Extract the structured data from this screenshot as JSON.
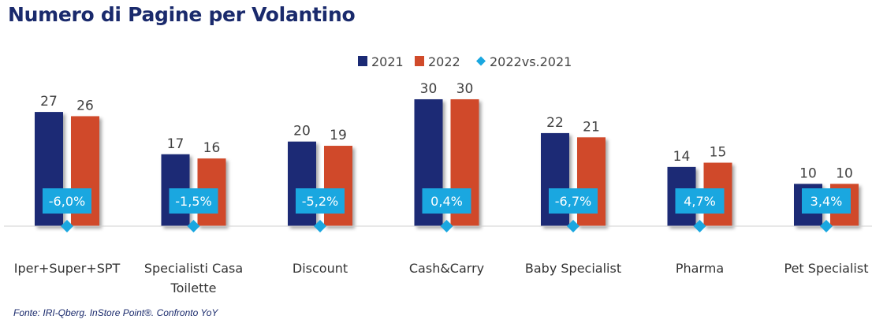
{
  "chart_data": {
    "type": "bar",
    "title": "Numero di Pagine per Volantino",
    "categories": [
      "Iper+Super+SPT",
      "Specialisti Casa Toilette",
      "Discount",
      "Cash&Carry",
      "Baby Specialist",
      "Pharma",
      "Pet Specialist"
    ],
    "category_lines": [
      [
        "Iper+Super+SPT"
      ],
      [
        "Specialisti Casa",
        "Toilette"
      ],
      [
        "Discount"
      ],
      [
        "Cash&Carry"
      ],
      [
        "Baby Specialist"
      ],
      [
        "Pharma"
      ],
      [
        "Pet Specialist"
      ]
    ],
    "series": [
      {
        "name": "2021",
        "color": "#1b2a74",
        "values": [
          27,
          17,
          20,
          30,
          22,
          14,
          10
        ]
      },
      {
        "name": "2022",
        "color": "#d04a2a",
        "values": [
          26,
          16,
          19,
          30,
          21,
          15,
          10
        ]
      }
    ],
    "yoy": {
      "name": "2022vs.2021",
      "color": "#1aa7e0",
      "labels": [
        "-6,0%",
        "-1,5%",
        "-5,2%",
        "0,4%",
        "-6,7%",
        "4,7%",
        "3,4%"
      ]
    },
    "ylim": [
      0,
      30
    ],
    "xlabel": "",
    "ylabel": "",
    "legend_position": "top-center",
    "grid": false
  },
  "source": "Fonte: IRI-Qberg. InStore Point®. Confronto YoY"
}
